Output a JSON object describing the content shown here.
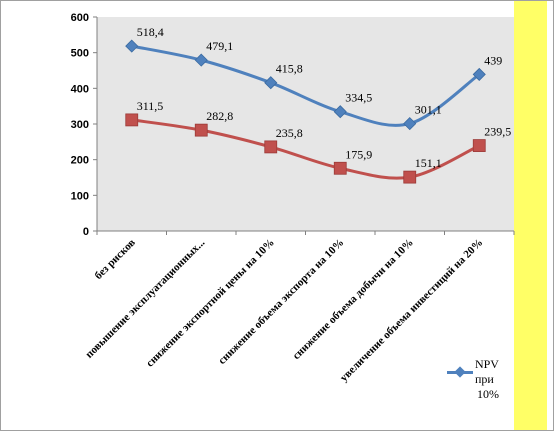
{
  "chart_data": {
    "type": "line",
    "categories": [
      "без рисков",
      "повышение эксплуатационных...",
      "снижение экспортной цены на 10%",
      "снижение объема экспорта на 10%",
      "снижение объема добычи на 10%",
      "увеличение объема инвестиций на 20%"
    ],
    "series": [
      {
        "name": "NPV при 10%",
        "values": [
          518.4,
          479.1,
          415.8,
          334.5,
          301.1,
          439
        ],
        "labels": [
          "518,4",
          "479,1",
          "415,8",
          "334,5",
          "301,1",
          "439"
        ],
        "color": "#4f81bd",
        "marker": "diamond"
      },
      {
        "values": [
          311.5,
          282.8,
          235.8,
          175.9,
          151.1,
          239.5
        ],
        "labels": [
          "311,5",
          "282,8",
          "235,8",
          "175,9",
          "151,1",
          "239,5"
        ],
        "color": "#c0504d",
        "marker": "square"
      }
    ],
    "ylim": [
      0,
      600
    ],
    "yticks": [
      "0",
      "100",
      "200",
      "300",
      "400",
      "500",
      "600"
    ],
    "grid": false,
    "legend": "bottom-right",
    "plot_background": "#e6e6e6",
    "accent_strip_color": "#ffff66"
  },
  "legend": {
    "line1": "NPV при",
    "line2": "10%"
  }
}
